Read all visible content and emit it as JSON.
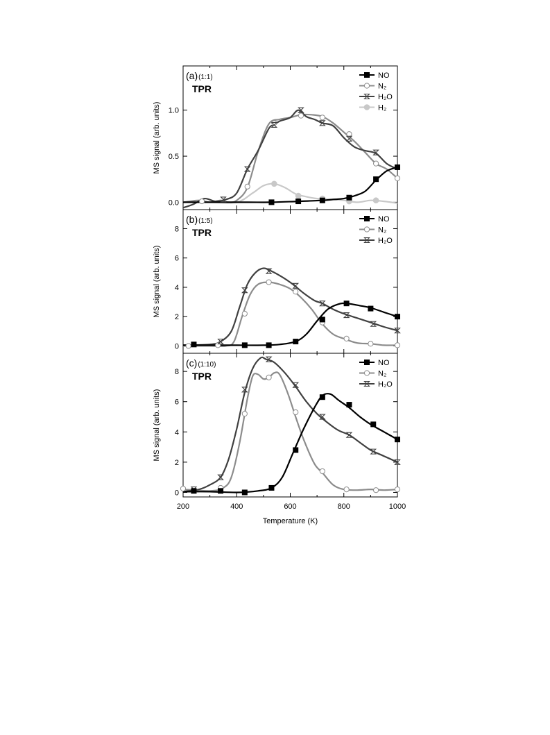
{
  "colors": {
    "NO": "#000000",
    "N2": "#8c8c8c",
    "H2O": "#404040",
    "H2": "#c8c8c8"
  },
  "chart_data": [
    {
      "type": "line",
      "panel_letter": "(a)",
      "panel_ratio": "(1:1)",
      "panel_tag": "TPR",
      "xlabel": "Temperature (K)",
      "ylabel": "MS signal (arb. units)",
      "xlim": [
        200,
        1000
      ],
      "ylim": [
        -0.08,
        1.48
      ],
      "yticks": [
        0.0,
        0.5,
        1.0
      ],
      "ytick_labels": [
        "0.0",
        "0.5",
        "1.0"
      ],
      "xticks": [
        200,
        400,
        600,
        800,
        1000
      ],
      "xtick_labels": [],
      "legend_position": "top-right",
      "series": [
        {
          "key": "NO",
          "name": "NO",
          "marker": "filled-square",
          "x": [
            200,
            300,
            440,
            530,
            630,
            720,
            760,
            800,
            840,
            880,
            920,
            960,
            1000
          ],
          "y": [
            0.0,
            0.0,
            0.0,
            0.0,
            0.01,
            0.02,
            0.03,
            0.04,
            0.07,
            0.12,
            0.24,
            0.34,
            0.38
          ],
          "marker_x": [
            530,
            630,
            720,
            820,
            920,
            1000
          ],
          "marker_y": [
            0.0,
            0.01,
            0.02,
            0.05,
            0.25,
            0.38
          ]
        },
        {
          "key": "N2",
          "name": "N₂",
          "marker": "open-circle",
          "x": [
            200,
            260,
            300,
            340,
            370,
            400,
            440,
            480,
            520,
            560,
            600,
            640,
            680,
            720,
            760,
            800,
            840,
            880,
            920,
            960,
            1000
          ],
          "y": [
            0.0,
            0.02,
            0.0,
            0.02,
            0.0,
            0.02,
            0.16,
            0.55,
            0.85,
            0.9,
            0.92,
            0.95,
            0.95,
            0.93,
            0.86,
            0.76,
            0.66,
            0.54,
            0.42,
            0.36,
            0.26
          ],
          "marker_x": [
            270,
            440,
            540,
            640,
            720,
            820,
            920,
            1000
          ],
          "marker_y": [
            0.01,
            0.17,
            0.86,
            0.94,
            0.92,
            0.74,
            0.42,
            0.26
          ]
        },
        {
          "key": "H2O",
          "name": "H₂O",
          "marker": "hourglass",
          "x": [
            200,
            240,
            280,
            320,
            360,
            400,
            440,
            480,
            520,
            540,
            560,
            600,
            630,
            660,
            690,
            720,
            760,
            800,
            840,
            880,
            920,
            960,
            1000
          ],
          "y": [
            -0.06,
            -0.02,
            0.04,
            0.01,
            0.03,
            0.1,
            0.36,
            0.56,
            0.8,
            0.84,
            0.88,
            0.92,
            1.0,
            0.93,
            0.9,
            0.86,
            0.83,
            0.7,
            0.6,
            0.56,
            0.53,
            0.42,
            0.36
          ],
          "marker_x": [
            350,
            440,
            540,
            640,
            720,
            820,
            920
          ],
          "marker_y": [
            0.03,
            0.36,
            0.84,
            1.0,
            0.86,
            0.69,
            0.54
          ]
        },
        {
          "key": "H2",
          "name": "H₂",
          "marker": "filled-circle",
          "x": [
            200,
            300,
            400,
            460,
            500,
            540,
            580,
            620,
            660,
            700,
            760,
            800,
            850,
            900,
            950,
            1000
          ],
          "y": [
            0.0,
            0.0,
            0.0,
            0.1,
            0.18,
            0.2,
            0.16,
            0.09,
            0.06,
            0.04,
            0.03,
            0.02,
            0.0,
            0.02,
            0.01,
            -0.01
          ],
          "marker_x": [
            540,
            630,
            720,
            820,
            920
          ],
          "marker_y": [
            0.2,
            0.07,
            0.04,
            0.01,
            0.02
          ]
        }
      ]
    },
    {
      "type": "line",
      "panel_letter": "(b)",
      "panel_ratio": "(1:5)",
      "panel_tag": "TPR",
      "xlabel": "Temperature (K)",
      "ylabel": "MS signal (arb. units)",
      "xlim": [
        200,
        1000
      ],
      "ylim": [
        -0.5,
        9.3
      ],
      "yticks": [
        0,
        2,
        4,
        6,
        8
      ],
      "ytick_labels": [
        "0",
        "2",
        "4",
        "6",
        "8"
      ],
      "xticks": [
        200,
        400,
        600,
        800,
        1000
      ],
      "xtick_labels": [],
      "legend_position": "top-right",
      "series": [
        {
          "key": "NO",
          "name": "NO",
          "marker": "filled-square",
          "x": [
            200,
            300,
            400,
            500,
            560,
            620,
            660,
            700,
            740,
            780,
            810,
            860,
            900,
            950,
            1000
          ],
          "y": [
            0.05,
            0.05,
            0.05,
            0.05,
            0.1,
            0.3,
            0.8,
            1.7,
            2.5,
            2.85,
            2.9,
            2.75,
            2.6,
            2.3,
            2.0
          ],
          "marker_x": [
            240,
            430,
            520,
            620,
            720,
            810,
            900,
            1000
          ],
          "marker_y": [
            0.1,
            0.05,
            0.05,
            0.3,
            1.8,
            2.9,
            2.55,
            2.0
          ]
        },
        {
          "key": "N2",
          "name": "N₂",
          "marker": "open-circle",
          "x": [
            200,
            300,
            360,
            390,
            420,
            450,
            480,
            520,
            560,
            600,
            640,
            680,
            720,
            760,
            800,
            850,
            900,
            950,
            1000
          ],
          "y": [
            0.0,
            0.0,
            0.0,
            0.3,
            2.0,
            3.5,
            4.2,
            4.35,
            4.2,
            3.9,
            3.3,
            2.5,
            1.5,
            0.8,
            0.5,
            0.2,
            0.15,
            0.05,
            0.05
          ],
          "marker_x": [
            220,
            330,
            430,
            520,
            620,
            720,
            810,
            900,
            1000
          ],
          "marker_y": [
            0.0,
            0.05,
            2.2,
            4.35,
            3.7,
            1.6,
            0.5,
            0.15,
            0.05
          ]
        },
        {
          "key": "H2O",
          "name": "H₂O",
          "marker": "hourglass",
          "x": [
            200,
            300,
            340,
            380,
            410,
            440,
            470,
            500,
            530,
            570,
            610,
            650,
            690,
            720,
            760,
            800,
            850,
            900,
            950,
            1000
          ],
          "y": [
            0.05,
            0.1,
            0.3,
            1.0,
            2.6,
            4.2,
            5.0,
            5.3,
            5.1,
            4.7,
            4.2,
            3.6,
            3.1,
            2.9,
            2.5,
            2.2,
            1.9,
            1.6,
            1.3,
            1.05
          ],
          "marker_x": [
            340,
            430,
            520,
            620,
            720,
            810,
            910,
            1000
          ],
          "marker_y": [
            0.3,
            3.8,
            5.1,
            4.1,
            2.9,
            2.1,
            1.5,
            1.05
          ]
        }
      ]
    },
    {
      "type": "line",
      "panel_letter": "(c)",
      "panel_ratio": "(1:10)",
      "panel_tag": "TPR",
      "xlabel": "Temperature (K)",
      "ylabel": "MS signal (arb. units)",
      "xlim": [
        200,
        1000
      ],
      "ylim": [
        -0.3,
        9.2
      ],
      "yticks": [
        0,
        2,
        4,
        6,
        8
      ],
      "ytick_labels": [
        "0",
        "2",
        "4",
        "6",
        "8"
      ],
      "xticks": [
        200,
        400,
        600,
        800,
        1000
      ],
      "xtick_labels": [
        "200",
        "400",
        "600",
        "800",
        "1000"
      ],
      "legend_position": "top-right",
      "series": [
        {
          "key": "NO",
          "name": "NO",
          "marker": "filled-square",
          "x": [
            200,
            300,
            400,
            480,
            530,
            570,
            610,
            650,
            690,
            720,
            750,
            780,
            820,
            860,
            900,
            950,
            1000
          ],
          "y": [
            0.05,
            0.05,
            0.0,
            0.1,
            0.3,
            1.0,
            2.6,
            4.2,
            5.6,
            6.4,
            6.5,
            6.1,
            5.6,
            5.0,
            4.5,
            4.0,
            3.5
          ],
          "marker_x": [
            240,
            340,
            430,
            530,
            620,
            720,
            820,
            910,
            1000
          ],
          "marker_y": [
            0.1,
            0.1,
            0.0,
            0.3,
            2.8,
            6.3,
            5.8,
            4.5,
            3.5
          ]
        },
        {
          "key": "N2",
          "name": "N₂",
          "marker": "open-circle",
          "x": [
            200,
            300,
            350,
            380,
            410,
            440,
            460,
            480,
            500,
            520,
            540,
            560,
            590,
            620,
            650,
            690,
            720,
            760,
            800,
            850,
            900,
            950,
            1000
          ],
          "y": [
            0.2,
            0.1,
            0.3,
            1.0,
            3.2,
            6.2,
            7.7,
            7.8,
            7.5,
            7.6,
            7.9,
            7.8,
            6.6,
            5.0,
            3.5,
            1.9,
            1.3,
            0.5,
            0.2,
            0.15,
            0.2,
            0.15,
            0.2
          ],
          "marker_x": [
            200,
            340,
            430,
            520,
            620,
            720,
            810,
            920,
            1000
          ],
          "marker_y": [
            0.25,
            0.3,
            5.2,
            7.6,
            5.3,
            1.4,
            0.2,
            0.15,
            0.2
          ]
        },
        {
          "key": "H2O",
          "name": "H₂O",
          "marker": "hourglass",
          "x": [
            200,
            260,
            300,
            340,
            370,
            400,
            430,
            460,
            490,
            510,
            540,
            580,
            620,
            660,
            700,
            740,
            780,
            820,
            860,
            900,
            950,
            1000
          ],
          "y": [
            0.05,
            0.2,
            0.5,
            1.0,
            2.2,
            4.2,
            6.6,
            8.2,
            8.9,
            8.8,
            8.6,
            7.9,
            7.0,
            6.0,
            5.2,
            4.6,
            4.1,
            3.8,
            3.3,
            2.8,
            2.4,
            2.0
          ],
          "marker_x": [
            240,
            340,
            430,
            520,
            620,
            720,
            820,
            910,
            1000
          ],
          "marker_y": [
            0.2,
            1.0,
            6.8,
            8.8,
            7.1,
            5.0,
            3.8,
            2.7,
            2.0
          ]
        }
      ]
    }
  ]
}
